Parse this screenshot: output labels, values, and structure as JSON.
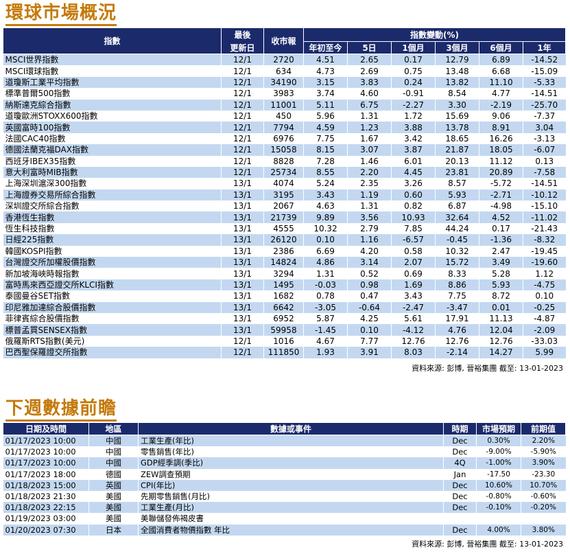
{
  "market": {
    "title": "環球市場概況",
    "headers": {
      "index": "指數",
      "last_update_1": "最後",
      "last_update_2": "更新日",
      "close": "收市報",
      "change_group": "指數變動(%)",
      "ytd": "年初至今",
      "d5": "5日",
      "m1": "1個月",
      "m3": "3個月",
      "m6": "6個月",
      "y1": "1年"
    },
    "rows": [
      {
        "name": "MSCI世界指數",
        "date": "12/1",
        "close": "2720",
        "ytd": "4.51",
        "d5": "2.65",
        "m1": "0.17",
        "m3": "12.79",
        "m6": "6.89",
        "y1": "-14.52"
      },
      {
        "name": "MSCI環球指數",
        "date": "12/1",
        "close": "634",
        "ytd": "4.73",
        "d5": "2.69",
        "m1": "0.75",
        "m3": "13.48",
        "m6": "6.68",
        "y1": "-15.09"
      },
      {
        "name": "道瓊斯工業平均指數",
        "date": "12/1",
        "close": "34190",
        "ytd": "3.15",
        "d5": "3.83",
        "m1": "0.24",
        "m3": "13.82",
        "m6": "11.10",
        "y1": "-5.33"
      },
      {
        "name": "標準普爾500指數",
        "date": "12/1",
        "close": "3983",
        "ytd": "3.74",
        "d5": "4.60",
        "m1": "-0.91",
        "m3": "8.54",
        "m6": "4.77",
        "y1": "-14.51"
      },
      {
        "name": "納斯達克綜合指數",
        "date": "12/1",
        "close": "11001",
        "ytd": "5.11",
        "d5": "6.75",
        "m1": "-2.27",
        "m3": "3.30",
        "m6": "-2.19",
        "y1": "-25.70"
      },
      {
        "name": "道瓊歐洲STOXX600指數",
        "date": "12/1",
        "close": "450",
        "ytd": "5.96",
        "d5": "1.31",
        "m1": "1.72",
        "m3": "15.69",
        "m6": "9.06",
        "y1": "-7.37"
      },
      {
        "name": "英國富時100指數",
        "date": "12/1",
        "close": "7794",
        "ytd": "4.59",
        "d5": "1.23",
        "m1": "3.88",
        "m3": "13.78",
        "m6": "8.91",
        "y1": "3.04"
      },
      {
        "name": "法國CAC40指數",
        "date": "12/1",
        "close": "6976",
        "ytd": "7.75",
        "d5": "1.67",
        "m1": "3.42",
        "m3": "18.65",
        "m6": "16.26",
        "y1": "-3.13"
      },
      {
        "name": "德國法蘭克福DAX指數",
        "date": "12/1",
        "close": "15058",
        "ytd": "8.15",
        "d5": "3.07",
        "m1": "3.87",
        "m3": "21.87",
        "m6": "18.05",
        "y1": "-6.07"
      },
      {
        "name": "西班牙IBEX35指數",
        "date": "12/1",
        "close": "8828",
        "ytd": "7.28",
        "d5": "1.46",
        "m1": "6.01",
        "m3": "20.13",
        "m6": "11.12",
        "y1": "0.13"
      },
      {
        "name": "意大利富時MIB指數",
        "date": "12/1",
        "close": "25734",
        "ytd": "8.55",
        "d5": "2.20",
        "m1": "4.45",
        "m3": "23.81",
        "m6": "20.89",
        "y1": "-7.58"
      },
      {
        "name": "上海深圳滬深300指數",
        "date": "13/1",
        "close": "4074",
        "ytd": "5.24",
        "d5": "2.35",
        "m1": "3.26",
        "m3": "8.57",
        "m6": "-5.72",
        "y1": "-14.51"
      },
      {
        "name": "上海證券交易所綜合指數",
        "date": "13/1",
        "close": "3195",
        "ytd": "3.43",
        "d5": "1.19",
        "m1": "0.60",
        "m3": "5.93",
        "m6": "-2.71",
        "y1": "-10.12"
      },
      {
        "name": "深圳證交所綜合指數",
        "date": "13/1",
        "close": "2067",
        "ytd": "4.63",
        "d5": "1.31",
        "m1": "0.82",
        "m3": "6.87",
        "m6": "-4.98",
        "y1": "-15.10"
      },
      {
        "name": "香港恆生指數",
        "date": "13/1",
        "close": "21739",
        "ytd": "9.89",
        "d5": "3.56",
        "m1": "10.93",
        "m3": "32.64",
        "m6": "4.52",
        "y1": "-11.02"
      },
      {
        "name": "恆生科技指數",
        "date": "13/1",
        "close": "4555",
        "ytd": "10.32",
        "d5": "2.79",
        "m1": "7.85",
        "m3": "44.24",
        "m6": "0.17",
        "y1": "-21.43"
      },
      {
        "name": "日經225指數",
        "date": "13/1",
        "close": "26120",
        "ytd": "0.10",
        "d5": "1.16",
        "m1": "-6.57",
        "m3": "-0.45",
        "m6": "-1.36",
        "y1": "-8.32"
      },
      {
        "name": "韓國KOSPI指數",
        "date": "13/1",
        "close": "2386",
        "ytd": "6.69",
        "d5": "4.20",
        "m1": "0.58",
        "m3": "10.32",
        "m6": "2.47",
        "y1": "-19.45"
      },
      {
        "name": "台灣證交所加權股價指數",
        "date": "13/1",
        "close": "14824",
        "ytd": "4.86",
        "d5": "3.14",
        "m1": "2.07",
        "m3": "15.72",
        "m6": "3.49",
        "y1": "-19.60"
      },
      {
        "name": "新加坡海峽時報指數",
        "date": "13/1",
        "close": "3294",
        "ytd": "1.31",
        "d5": "0.52",
        "m1": "0.69",
        "m3": "8.33",
        "m6": "5.28",
        "y1": "1.12"
      },
      {
        "name": "富時馬來西亞證交所KLCI指數",
        "date": "13/1",
        "close": "1495",
        "ytd": "-0.03",
        "d5": "0.98",
        "m1": "1.69",
        "m3": "8.86",
        "m6": "5.93",
        "y1": "-4.75"
      },
      {
        "name": "泰國曼谷SET指數",
        "date": "13/1",
        "close": "1682",
        "ytd": "0.78",
        "d5": "0.47",
        "m1": "3.43",
        "m3": "7.75",
        "m6": "8.72",
        "y1": "0.10"
      },
      {
        "name": "印尼雅加達綜合股價指數",
        "date": "13/1",
        "close": "6642",
        "ytd": "-3.05",
        "d5": "-0.64",
        "m1": "-2.47",
        "m3": "-3.47",
        "m6": "0.01",
        "y1": "-0.25"
      },
      {
        "name": "菲律賓綜合股價指數",
        "date": "13/1",
        "close": "6952",
        "ytd": "5.87",
        "d5": "4.25",
        "m1": "5.61",
        "m3": "17.91",
        "m6": "11.13",
        "y1": "-4.87"
      },
      {
        "name": "標普孟買SENSEX指數",
        "date": "13/1",
        "close": "59958",
        "ytd": "-1.45",
        "d5": "0.10",
        "m1": "-4.12",
        "m3": "4.76",
        "m6": "12.04",
        "y1": "-2.09"
      },
      {
        "name": "俄羅斯RTS指數(美元)",
        "date": "12/1",
        "close": "1016",
        "ytd": "4.67",
        "d5": "7.77",
        "m1": "12.76",
        "m3": "12.76",
        "m6": "12.76",
        "y1": "-33.03"
      },
      {
        "name": "巴西聖保羅證交所指數",
        "date": "12/1",
        "close": "111850",
        "ytd": "1.93",
        "d5": "3.91",
        "m1": "8.03",
        "m3": "-2.14",
        "m6": "14.27",
        "y1": "5.99"
      }
    ],
    "source": "資料來源: 彭博, 晉裕集團 截至: 13-01-2023"
  },
  "events": {
    "title": "下週數據前瞻",
    "headers": {
      "datetime": "日期及時間",
      "region": "地區",
      "event": "數據或事件",
      "period": "時期",
      "forecast": "市場預期",
      "previous": "前期值"
    },
    "rows": [
      {
        "datetime": "01/17/2023 10:00",
        "region": "中國",
        "event": "工業生產(年比)",
        "period": "Dec",
        "forecast": "0.30%",
        "previous": "2.20%"
      },
      {
        "datetime": "01/17/2023 10:00",
        "region": "中國",
        "event": "零售銷售(年比)",
        "period": "Dec",
        "forecast": "-9.00%",
        "previous": "-5.90%"
      },
      {
        "datetime": "01/17/2023 10:00",
        "region": "中國",
        "event": "GDP經季調(季比)",
        "period": "4Q",
        "forecast": "-1.00%",
        "previous": "3.90%"
      },
      {
        "datetime": "01/17/2023 18:00",
        "region": "德國",
        "event": "ZEW調查預期",
        "period": "Jan",
        "forecast": "-17.50",
        "previous": "-23.30"
      },
      {
        "datetime": "01/18/2023 15:00",
        "region": "英國",
        "event": "CPI(年比)",
        "period": "Dec",
        "forecast": "10.60%",
        "previous": "10.70%"
      },
      {
        "datetime": "01/18/2023 21:30",
        "region": "美國",
        "event": "先期零售銷售(月比)",
        "period": "Dec",
        "forecast": "-0.80%",
        "previous": "-0.60%"
      },
      {
        "datetime": "01/18/2023 22:15",
        "region": "美國",
        "event": "工業生產(月比)",
        "period": "Dec",
        "forecast": "-0.10%",
        "previous": "-0.20%"
      },
      {
        "datetime": "01/19/2023 03:00",
        "region": "美國",
        "event": "美聯儲發佈褐皮書",
        "period": "",
        "forecast": "",
        "previous": ""
      },
      {
        "datetime": "01/20/2023 07:30",
        "region": "日本",
        "event": "全國消費者物價指數 年比",
        "period": "Dec",
        "forecast": "4.00%",
        "previous": "3.80%"
      }
    ],
    "source": "資料來源: 彭博, 晉裕集團 截至: 13-01-2023"
  }
}
